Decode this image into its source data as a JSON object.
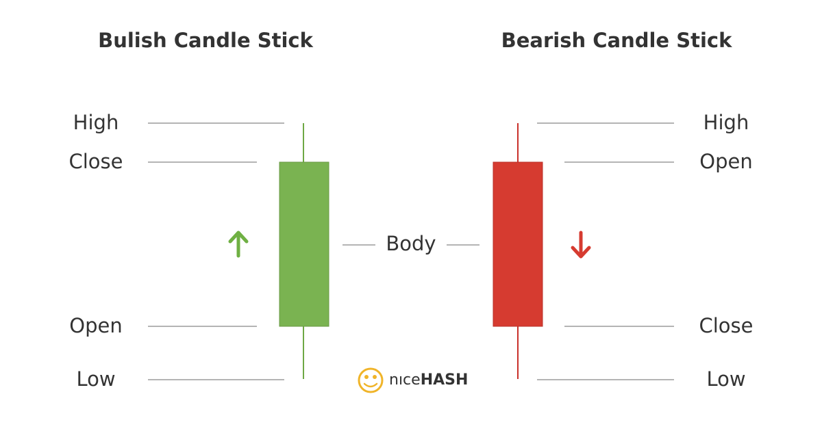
{
  "bullish": {
    "title": "Bulish Candle Stick",
    "labels": {
      "high": "High",
      "close": "Close",
      "open": "Open",
      "low": "Low"
    }
  },
  "bearish": {
    "title": "Bearish Candle Stick",
    "labels": {
      "high": "High",
      "open": "Open",
      "close": "Close",
      "low": "Low"
    }
  },
  "body_label": "Body",
  "logo": {
    "light": "nıce",
    "bold": "HASH"
  }
}
